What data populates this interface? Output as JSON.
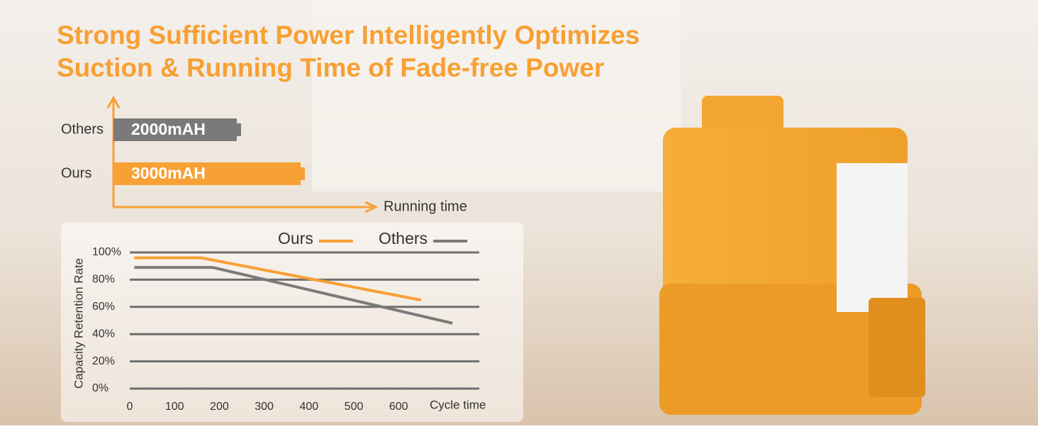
{
  "title": [
    "Strong Sufficient Power Intelligently Optimizes",
    "Suction & Running Time of Fade-free Power"
  ],
  "chart_data": [
    {
      "type": "hbar",
      "categories": [
        "Others",
        "Ours"
      ],
      "values": [
        2000,
        3000
      ],
      "value_labels": [
        "2000mAH",
        "3000mAH"
      ],
      "colors": [
        "#7a7a7a",
        "#f7a033"
      ],
      "x_label": "Running time"
    },
    {
      "type": "line",
      "y_label": "Capacity Retention Rate",
      "x_label": "Cycle time",
      "xlim": [
        0,
        780
      ],
      "ylim": [
        0,
        100
      ],
      "xticks": [
        0,
        100,
        200,
        300,
        400,
        500,
        600
      ],
      "yticks": [
        {
          "value": 0,
          "label": "0%"
        },
        {
          "value": 20,
          "label": "20%"
        },
        {
          "value": 40,
          "label": "40%"
        },
        {
          "value": 60,
          "label": "60%"
        },
        {
          "value": 80,
          "label": "80%"
        },
        {
          "value": 100,
          "label": "100%"
        }
      ],
      "grid": true,
      "series": [
        {
          "name": "Ours",
          "color": "#f7a033",
          "x": [
            10,
            160,
            650
          ],
          "values": [
            96,
            96,
            65
          ]
        },
        {
          "name": "Others",
          "color": "#7a7a7a",
          "x": [
            10,
            185,
            720
          ],
          "values": [
            89,
            89,
            48
          ]
        }
      ]
    }
  ]
}
